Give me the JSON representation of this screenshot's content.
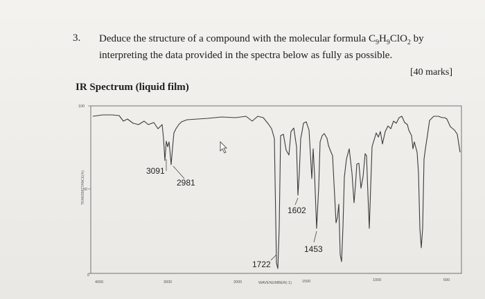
{
  "question": {
    "number": "3.",
    "text_before_formula": "Deduce the structure of a compound with the molecular formula C",
    "f_c": "9",
    "f_h_pre": "H",
    "f_h": "9",
    "f_rest": "ClO",
    "f_o": "2",
    "text_after_formula": " by",
    "line2": "interpreting the data provided in the spectra below as fully as possible.",
    "marks": "[40 marks]"
  },
  "ir": {
    "title": "IR Spectrum (liquid film)",
    "y_axis_label": "TRANSMITTANCE(%)",
    "y_ticks": [
      "100",
      "50",
      "0"
    ],
    "x_ticks": [
      "4000",
      "3000",
      "2000",
      "1500",
      "1000",
      "500"
    ],
    "x_axis_label": "WAVENUMBER(-1)",
    "annotations": [
      "3091",
      "2981",
      "1722",
      "1602",
      "1453"
    ],
    "line_color": "#3a3a3a"
  }
}
